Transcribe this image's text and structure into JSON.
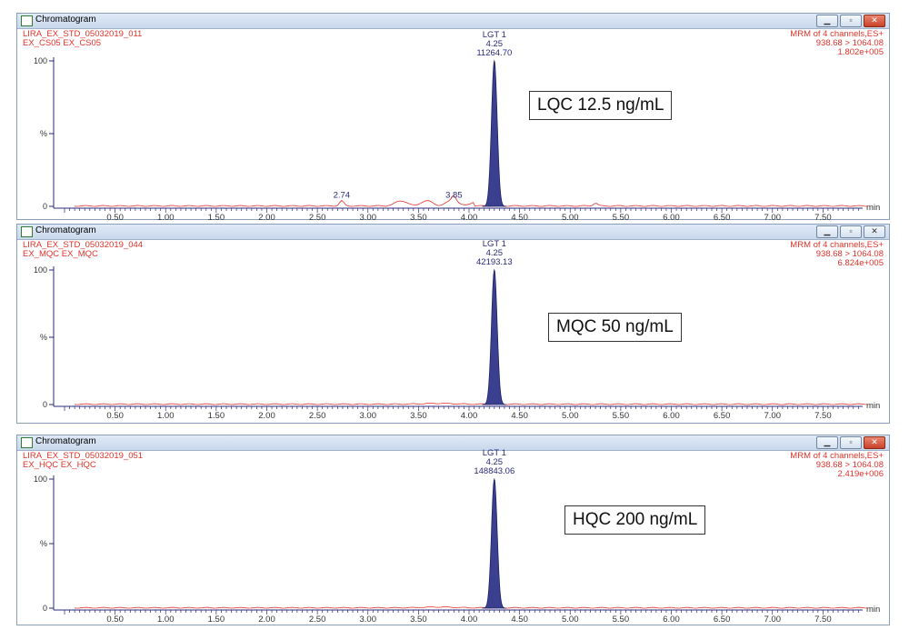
{
  "windows": [
    {
      "title": "Chromatogram",
      "sample_name": "LIRA_EX_STD_05032019_011",
      "sample_id": "EX_CS05 EX_CS05",
      "channel_info": "MRM of 4 channels,ES+",
      "transition": "938.68 > 1064.08",
      "intensity_max": "1.802e+005",
      "peak_name": "LGT 1",
      "peak_rt": "4.25",
      "peak_area": "11264.70",
      "qc_label": "LQC 12.5 ng/mL",
      "minor_peaks": [
        {
          "rt": "2.74"
        },
        {
          "rt": "3.85"
        }
      ]
    },
    {
      "title": "Chromatogram",
      "sample_name": "LIRA_EX_STD_05032019_044",
      "sample_id": "EX_MQC EX_MQC",
      "channel_info": "MRM of 4 channels,ES+",
      "transition": "938.68 > 1064.08",
      "intensity_max": "6.824e+005",
      "peak_name": "LGT 1",
      "peak_rt": "4.25",
      "peak_area": "42193.13",
      "qc_label": "MQC 50 ng/mL",
      "minor_peaks": []
    },
    {
      "title": "Chromatogram",
      "sample_name": "LIRA_EX_STD_05032019_051",
      "sample_id": "EX_HQC EX_HQC",
      "channel_info": "MRM of 4 channels,ES+",
      "transition": "938.68 > 1064.08",
      "intensity_max": "2.419e+006",
      "peak_name": "LGT 1",
      "peak_rt": "4.25",
      "peak_area": "148843.06",
      "qc_label": "HQC 200 ng/mL",
      "minor_peaks": []
    }
  ],
  "axis": {
    "x_unit": "min",
    "x_ticks": [
      "0.50",
      "1.00",
      "1.50",
      "2.00",
      "2.50",
      "3.00",
      "3.50",
      "4.00",
      "4.50",
      "5.00",
      "5.50",
      "6.00",
      "6.50",
      "7.00",
      "7.50"
    ],
    "y_ticks": [
      "100",
      "%",
      "0"
    ],
    "x_range": [
      0.0,
      8.0
    ],
    "y_range": [
      0,
      100
    ]
  },
  "colors": {
    "trace": "#e0332a",
    "peak_fill": "#3a3f8f",
    "axis": "#2a2a7a",
    "header_text": "#e0332a",
    "peak_label": "#2a2a7a"
  }
}
